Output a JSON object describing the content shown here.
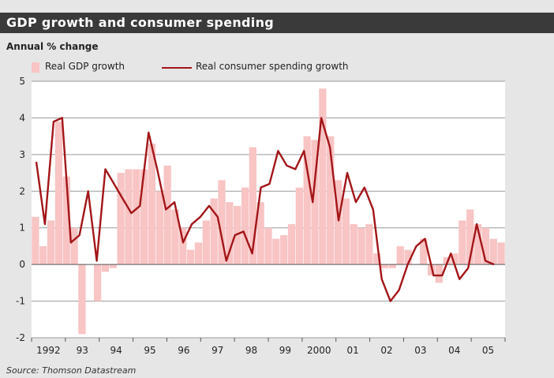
{
  "header": {
    "title": "GDP growth and consumer spending"
  },
  "source": "Source: Thomson Datastream",
  "colors": {
    "gdp_bar": "#f8c4c4",
    "consumer_line": "#a31518",
    "title_bar": "#3a3a3a",
    "background": "#e6e6e6",
    "plot_bg": "#ffffff"
  },
  "chart_data": {
    "type": "bar",
    "title": "GDP growth and consumer spending",
    "ylabel": "Annual % change",
    "xlabel": "",
    "ylim": [
      -2,
      5
    ],
    "yticks": [
      "5",
      "4",
      "3",
      "2",
      "1",
      "0",
      "-1",
      "-2"
    ],
    "x_labels": [
      "1992",
      "93",
      "94",
      "95",
      "96",
      "97",
      "98",
      "99",
      "2000",
      "01",
      "02",
      "03",
      "04",
      "05"
    ],
    "grid": true,
    "legend": "top",
    "series": [
      {
        "name": "Real GDP growth",
        "type": "bar",
        "values": [
          1.3,
          0.5,
          1.2,
          3.9,
          2.4,
          1.0,
          -1.9,
          0.0,
          -1.0,
          -0.2,
          -0.1,
          2.5,
          2.6,
          2.6,
          2.6,
          3.3,
          2.0,
          2.7,
          1.5,
          1.0,
          0.4,
          0.6,
          1.2,
          1.8,
          2.3,
          1.7,
          1.6,
          2.1,
          3.2,
          1.7,
          1.0,
          0.7,
          0.8,
          1.1,
          2.1,
          3.5,
          3.4,
          4.8,
          3.5,
          2.3,
          1.8,
          1.1,
          1.0,
          1.1,
          0.3,
          -0.1,
          -0.1,
          0.5,
          0.4,
          0.0,
          0.7,
          -0.3,
          -0.5,
          0.2,
          0.3,
          1.2,
          1.5,
          1.1,
          1.0,
          0.7,
          0.6
        ]
      },
      {
        "name": "Real consumer spending growth",
        "type": "line",
        "values": [
          2.8,
          1.1,
          3.9,
          4.0,
          0.6,
          0.8,
          2.0,
          0.1,
          2.6,
          2.2,
          1.8,
          1.4,
          1.6,
          3.6,
          2.6,
          1.5,
          1.7,
          0.6,
          1.1,
          1.3,
          1.6,
          1.3,
          0.1,
          0.8,
          0.9,
          0.3,
          2.1,
          2.2,
          3.1,
          2.7,
          2.6,
          3.1,
          1.7,
          4.0,
          3.2,
          1.2,
          2.5,
          1.7,
          2.1,
          1.5,
          -0.4,
          -1.0,
          -0.7,
          0.0,
          0.5,
          0.7,
          -0.3,
          -0.3,
          0.3,
          -0.4,
          -0.1,
          1.1,
          0.1,
          0.0
        ]
      }
    ]
  },
  "legend": {
    "gdp_label": "Real GDP growth",
    "consumer_label": "Real consumer spending growth"
  }
}
